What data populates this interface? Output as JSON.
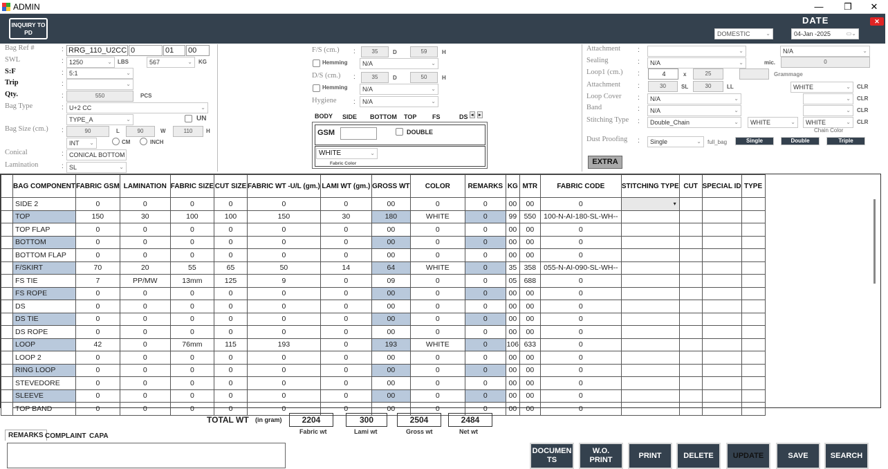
{
  "window": {
    "title": "ADMIN",
    "min": "—",
    "max": "❐",
    "close": "✕"
  },
  "header": {
    "inquiry_btn": "INQUIRY TO PD",
    "date_label": "DATE",
    "market": "DOMESTIC",
    "date": "04-Jan -2025",
    "close": "✕"
  },
  "left": {
    "bag_ref": {
      "label": "Bag Ref #",
      "v1": "RRG_110_U2CC",
      "v2": "0",
      "v3": "01",
      "v4": "00"
    },
    "swl": {
      "label": "SWL",
      "lbs": "1250",
      "lbs_unit": "LBS",
      "kg": "567",
      "kg_unit": "KG"
    },
    "sf": {
      "label": "S:F",
      "value": "5:1"
    },
    "trip": {
      "label": "Trip",
      "value": ""
    },
    "qty": {
      "label": "Qty.",
      "value": "550",
      "unit": "PCS"
    },
    "bag_type": {
      "label": "Bag Type",
      "value": "U+2 CC",
      "sub": "TYPE_A",
      "un": "UN"
    },
    "bag_size": {
      "label": "Bag Size (cm.)",
      "l": "90",
      "l_unit": "L",
      "w": "90",
      "w_unit": "W",
      "h": "110",
      "h_unit": "H",
      "int": "INT",
      "cm": "CM",
      "inch": "INCH"
    },
    "conical": {
      "label": "Conical",
      "value": "CONICAL BOTTOM"
    },
    "lamination": {
      "label": "Lamination",
      "value": "SL"
    }
  },
  "middle": {
    "fs": {
      "label": "F/S (cm.)",
      "d": "35",
      "d_unit": "D",
      "h": "59",
      "h_unit": "H"
    },
    "hemming1": {
      "label": "Hemming",
      "value": "N/A"
    },
    "ds": {
      "label": "D/S (cm.)",
      "d": "35",
      "d_unit": "D",
      "h": "50",
      "h_unit": "H"
    },
    "hemming2": {
      "label": "Hemming",
      "value": "N/A"
    },
    "hygiene": {
      "label": "Hygiene",
      "value": "N/A"
    },
    "tabs": [
      "BODY",
      "SIDE",
      "BOTTOM",
      "TOP",
      "FS",
      "DS"
    ],
    "gsm_label": "GSM",
    "gsm_value": "",
    "double": "DOUBLE",
    "fabric_color": "WHITE",
    "fabric_color_caption": "Fabric Color"
  },
  "right": {
    "attachment1": {
      "label": "Attachment",
      "value": "",
      "value2": "N/A"
    },
    "sealing": {
      "label": "Sealing",
      "value": "N/A",
      "mic": "mic.",
      "mic_value": "0"
    },
    "loop1": {
      "label": "Loop1 (cm.)",
      "a": "4",
      "x": "x",
      "b": "25",
      "grammage": "Grammage"
    },
    "attachment2": {
      "label": "Attachment",
      "sl": "30",
      "sl_unit": "SL",
      "ll": "30",
      "ll_unit": "LL",
      "color": "WHITE",
      "clr": "CLR"
    },
    "loop_cover": {
      "label": "Loop Cover",
      "value": "N/A",
      "clr": "CLR"
    },
    "band": {
      "label": "Band",
      "value": "N/A",
      "clr": "CLR"
    },
    "stitching": {
      "label": "Stitching Type",
      "value": "Double_Chain",
      "c1": "WHITE",
      "c2": "WHITE",
      "clr": "CLR",
      "chain_color": "Chain Color"
    },
    "dust": {
      "label": "Dust Proofing",
      "value": "Single",
      "full_bag": "full_bag",
      "b1": "Single",
      "b2": "Double",
      "b3": "Triple"
    },
    "extra": "EXTRA"
  },
  "table": {
    "headers": [
      "BAG COMPONENT",
      "FABRIC GSM",
      "LAMINATION",
      "FABRIC SIZE",
      "CUT SIZE",
      "FABRIC WT -U/L (gm.)",
      "LAMI WT (gm.)",
      "GROSS WT",
      "COLOR",
      "REMARKS",
      "KG",
      "MTR",
      "FABRIC CODE",
      "STITCHING TYPE",
      "CUT",
      "SPECIAL ID",
      "TYPE"
    ],
    "rows": [
      [
        "SIDE 2",
        "0",
        "0",
        "0",
        "0",
        "0",
        "0",
        "00",
        "0",
        "0",
        "00",
        "00",
        "0"
      ],
      [
        "TOP",
        "150",
        "30",
        "100",
        "100",
        "150",
        "30",
        "180",
        "WHITE",
        "0",
        "99",
        "550",
        "100-N-AI-180-SL-WH--"
      ],
      [
        "TOP FLAP",
        "0",
        "0",
        "0",
        "0",
        "0",
        "0",
        "00",
        "0",
        "0",
        "00",
        "00",
        "0"
      ],
      [
        "BOTTOM",
        "0",
        "0",
        "0",
        "0",
        "0",
        "0",
        "00",
        "0",
        "0",
        "00",
        "00",
        "0"
      ],
      [
        "BOTTOM FLAP",
        "0",
        "0",
        "0",
        "0",
        "0",
        "0",
        "00",
        "0",
        "0",
        "00",
        "00",
        "0"
      ],
      [
        "F/SKIRT",
        "70",
        "20",
        "55",
        "65",
        "50",
        "14",
        "64",
        "WHITE",
        "0",
        "35",
        "358",
        "055-N-AI-090-SL-WH--"
      ],
      [
        "FS TIE",
        "7",
        "PP/MW",
        "13mm",
        "125",
        "9",
        "0",
        "09",
        "0",
        "0",
        "05",
        "688",
        "0"
      ],
      [
        "FS ROPE",
        "0",
        "0",
        "0",
        "0",
        "0",
        "0",
        "00",
        "0",
        "0",
        "00",
        "00",
        "0"
      ],
      [
        "DS",
        "0",
        "0",
        "0",
        "0",
        "0",
        "0",
        "00",
        "0",
        "0",
        "00",
        "00",
        "0"
      ],
      [
        "DS TIE",
        "0",
        "0",
        "0",
        "0",
        "0",
        "0",
        "00",
        "0",
        "0",
        "00",
        "00",
        "0"
      ],
      [
        "DS ROPE",
        "0",
        "0",
        "0",
        "0",
        "0",
        "0",
        "00",
        "0",
        "0",
        "00",
        "00",
        "0"
      ],
      [
        "LOOP",
        "42",
        "0",
        "76mm",
        "115",
        "193",
        "0",
        "193",
        "WHITE",
        "0",
        "106",
        "633",
        "0"
      ],
      [
        "LOOP 2",
        "0",
        "0",
        "0",
        "0",
        "0",
        "0",
        "00",
        "0",
        "0",
        "00",
        "00",
        "0"
      ],
      [
        "RING LOOP",
        "0",
        "0",
        "0",
        "0",
        "0",
        "0",
        "00",
        "0",
        "0",
        "00",
        "00",
        "0"
      ],
      [
        "STEVEDORE",
        "0",
        "0",
        "0",
        "0",
        "0",
        "0",
        "00",
        "0",
        "0",
        "00",
        "00",
        "0"
      ],
      [
        "SLEEVE",
        "0",
        "0",
        "0",
        "0",
        "0",
        "0",
        "00",
        "0",
        "0",
        "00",
        "00",
        "0"
      ],
      [
        "TOP BAND",
        "0",
        "0",
        "0",
        "0",
        "0",
        "0",
        "00",
        "0",
        "0",
        "00",
        "00",
        "0"
      ]
    ]
  },
  "totals": {
    "label": "TOTAL WT",
    "sub": "(in gram)",
    "fabric": "2204",
    "fabric_cap": "Fabric wt",
    "lami": "300",
    "lami_cap": "Lami wt",
    "gross": "2504",
    "gross_cap": "Gross wt",
    "net": "2484",
    "net_cap": "Net wt"
  },
  "bottom_tabs": [
    "REMARKS",
    "COMPLAINT",
    "CAPA"
  ],
  "actions": {
    "documents": "DOCUMEN TS",
    "wo_print": "W.O. PRINT",
    "print": "PRINT",
    "delete": "DELETE",
    "update": "UPDATE",
    "save": "SAVE",
    "search": "SEARCH"
  }
}
